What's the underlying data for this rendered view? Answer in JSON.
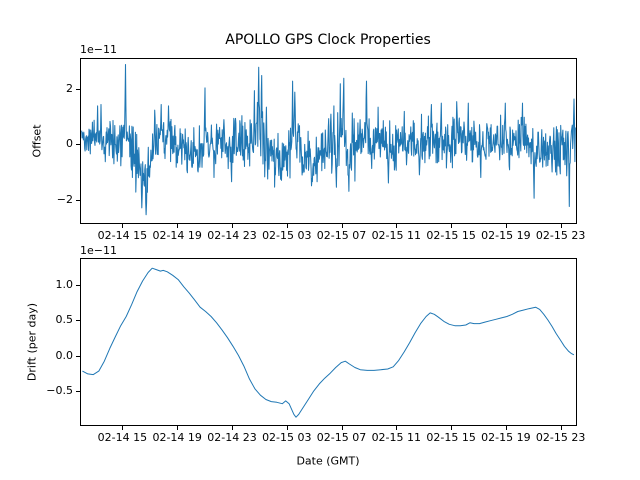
{
  "figure": {
    "title": "APOLLO GPS Clock Properties",
    "background_color": "#ffffff",
    "line_color": "#1f77b4"
  },
  "chart_data": [
    {
      "id": "offset",
      "type": "line",
      "title": "APOLLO GPS Clock Properties",
      "ylabel": "Offset",
      "xlabel": "",
      "scale_label": "1e−11",
      "y_unit_multiplier": "1e-11",
      "line_color": "#1f77b4",
      "grid": false,
      "legend": "none",
      "xlim_hours": [
        11.9,
        48.05
      ],
      "ylim": [
        -2.85,
        3.1
      ],
      "yticks": [
        {
          "value": 2,
          "label": "2"
        },
        {
          "value": 0,
          "label": "0"
        },
        {
          "value": -2,
          "label": "−2"
        }
      ],
      "xticks": [
        {
          "hour": 15,
          "label": "02-14 15"
        },
        {
          "hour": 19,
          "label": "02-14 19"
        },
        {
          "hour": 23,
          "label": "02-14 23"
        },
        {
          "hour": 27,
          "label": "02-15 03"
        },
        {
          "hour": 31,
          "label": "02-15 07"
        },
        {
          "hour": 35,
          "label": "02-15 11"
        },
        {
          "hour": 39,
          "label": "02-15 15"
        },
        {
          "hour": 43,
          "label": "02-15 19"
        },
        {
          "hour": 47,
          "label": "02-15 23"
        }
      ],
      "series_synthesis": {
        "comment_units": "hours since 02-14 00:00 GMT; values in 1e-11",
        "n_points": 1150,
        "seed": 42,
        "start_hour": 11.95,
        "end_hour": 48.0,
        "mean_anchors": [
          [
            12.0,
            0.3
          ],
          [
            13.0,
            0.2
          ],
          [
            14.0,
            0.05
          ],
          [
            15.0,
            0.15
          ],
          [
            15.6,
            -0.1
          ],
          [
            16.1,
            -0.7
          ],
          [
            16.6,
            -1.25
          ],
          [
            17.0,
            -0.55
          ],
          [
            17.5,
            0.1
          ],
          [
            18.0,
            0.3
          ],
          [
            18.6,
            0.0
          ],
          [
            19.2,
            -0.1
          ],
          [
            20.0,
            -0.3
          ],
          [
            20.7,
            -0.25
          ],
          [
            21.3,
            0.1
          ],
          [
            22.0,
            0.0
          ],
          [
            22.7,
            -0.15
          ],
          [
            23.4,
            0.1
          ],
          [
            24.2,
            0.15
          ],
          [
            24.9,
            0.5
          ],
          [
            25.5,
            -0.05
          ],
          [
            26.1,
            -0.5
          ],
          [
            26.7,
            -0.5
          ],
          [
            27.3,
            0.15
          ],
          [
            27.7,
            0.1
          ],
          [
            28.3,
            -0.45
          ],
          [
            28.9,
            -0.55
          ],
          [
            29.6,
            -0.25
          ],
          [
            30.2,
            0.05
          ],
          [
            30.9,
            0.35
          ],
          [
            31.5,
            -0.15
          ],
          [
            32.1,
            0.1
          ],
          [
            32.8,
            0.3
          ],
          [
            33.5,
            0.05
          ],
          [
            34.3,
            -0.2
          ],
          [
            35.1,
            0.0
          ],
          [
            36.0,
            0.1
          ],
          [
            37.0,
            0.05
          ],
          [
            37.9,
            0.2
          ],
          [
            38.6,
            0.0
          ],
          [
            39.4,
            0.25
          ],
          [
            40.1,
            0.15
          ],
          [
            40.8,
            -0.1
          ],
          [
            41.6,
            0.0
          ],
          [
            42.4,
            0.1
          ],
          [
            43.1,
            0.05
          ],
          [
            44.0,
            0.2
          ],
          [
            44.8,
            -0.05
          ],
          [
            45.4,
            -0.3
          ],
          [
            46.1,
            -0.2
          ],
          [
            46.8,
            -0.15
          ],
          [
            47.4,
            -0.1
          ],
          [
            47.95,
            0.4
          ]
        ],
        "std_anchors": [
          [
            12.0,
            0.25
          ],
          [
            13.5,
            0.35
          ],
          [
            15.0,
            0.4
          ],
          [
            16.5,
            0.55
          ],
          [
            18.0,
            0.45
          ],
          [
            20.0,
            0.4
          ],
          [
            22.0,
            0.4
          ],
          [
            23.5,
            0.42
          ],
          [
            24.9,
            0.55
          ],
          [
            26.0,
            0.45
          ],
          [
            27.5,
            0.5
          ],
          [
            28.8,
            0.55
          ],
          [
            30.0,
            0.5
          ],
          [
            31.0,
            0.55
          ],
          [
            32.5,
            0.45
          ],
          [
            34.0,
            0.42
          ],
          [
            35.5,
            0.4
          ],
          [
            37.0,
            0.42
          ],
          [
            39.0,
            0.48
          ],
          [
            41.0,
            0.4
          ],
          [
            43.0,
            0.42
          ],
          [
            44.5,
            0.45
          ],
          [
            45.5,
            0.45
          ],
          [
            47.0,
            0.42
          ],
          [
            47.95,
            0.5
          ]
        ],
        "spikes": [
          [
            13.1,
            1.4
          ],
          [
            13.35,
            1.45
          ],
          [
            15.15,
            2.9
          ],
          [
            16.35,
            -2.3
          ],
          [
            16.65,
            -2.55
          ],
          [
            17.75,
            1.45
          ],
          [
            18.3,
            1.4
          ],
          [
            20.45,
            -1.0
          ],
          [
            20.96,
            2.05
          ],
          [
            21.6,
            -1.2
          ],
          [
            22.35,
            0.9
          ],
          [
            22.9,
            -1.35
          ],
          [
            24.55,
            1.95
          ],
          [
            24.87,
            2.8
          ],
          [
            25.1,
            2.5
          ],
          [
            25.45,
            1.35
          ],
          [
            26.1,
            -1.1
          ],
          [
            26.55,
            -1.3
          ],
          [
            27.35,
            2.3
          ],
          [
            27.52,
            1.9
          ],
          [
            28.2,
            -1.0
          ],
          [
            28.75,
            -1.5
          ],
          [
            29.15,
            -1.35
          ],
          [
            30.15,
            1.1
          ],
          [
            30.55,
            -1.55
          ],
          [
            30.85,
            2.2
          ],
          [
            31.1,
            2.4
          ],
          [
            31.45,
            -1.7
          ],
          [
            32.75,
            2.3
          ],
          [
            33.6,
            1.35
          ],
          [
            34.35,
            -1.4
          ],
          [
            35.5,
            1.2
          ],
          [
            36.6,
            -1.1
          ],
          [
            37.5,
            1.45
          ],
          [
            38.2,
            1.5
          ],
          [
            39.35,
            1.55
          ],
          [
            40.2,
            1.5
          ],
          [
            41.1,
            -1.2
          ],
          [
            42.9,
            1.5
          ],
          [
            44.15,
            1.5
          ],
          [
            45.0,
            -1.95
          ],
          [
            46.3,
            -1.0
          ],
          [
            47.55,
            -2.25
          ],
          [
            47.9,
            1.65
          ]
        ]
      }
    },
    {
      "id": "drift",
      "type": "line",
      "title": "",
      "ylabel": "Drift (per day)",
      "xlabel": "Date (GMT)",
      "scale_label": "1e−11",
      "y_unit_multiplier": "1e-11",
      "line_color": "#1f77b4",
      "grid": false,
      "legend": "none",
      "xlim_hours": [
        11.9,
        48.05
      ],
      "ylim": [
        -0.98,
        1.36
      ],
      "yticks": [
        {
          "value": 1.0,
          "label": "1.0"
        },
        {
          "value": 0.5,
          "label": "0.5"
        },
        {
          "value": 0.0,
          "label": "0.0"
        },
        {
          "value": -0.5,
          "label": "−0.5"
        }
      ],
      "xticks": [
        {
          "hour": 15,
          "label": "02-14 15"
        },
        {
          "hour": 19,
          "label": "02-14 19"
        },
        {
          "hour": 23,
          "label": "02-14 23"
        },
        {
          "hour": 27,
          "label": "02-15 03"
        },
        {
          "hour": 31,
          "label": "02-15 07"
        },
        {
          "hour": 35,
          "label": "02-15 11"
        },
        {
          "hour": 39,
          "label": "02-15 15"
        },
        {
          "hour": 43,
          "label": "02-15 19"
        },
        {
          "hour": 47,
          "label": "02-15 23"
        }
      ],
      "points_hour_value": [
        [
          12.0,
          -0.22
        ],
        [
          12.4,
          -0.26
        ],
        [
          12.8,
          -0.27
        ],
        [
          13.2,
          -0.22
        ],
        [
          13.6,
          -0.08
        ],
        [
          14.0,
          0.1
        ],
        [
          14.4,
          0.26
        ],
        [
          14.8,
          0.42
        ],
        [
          15.2,
          0.55
        ],
        [
          15.6,
          0.72
        ],
        [
          16.0,
          0.9
        ],
        [
          16.4,
          1.05
        ],
        [
          16.8,
          1.17
        ],
        [
          17.1,
          1.23
        ],
        [
          17.4,
          1.21
        ],
        [
          17.7,
          1.19
        ],
        [
          17.9,
          1.2
        ],
        [
          18.2,
          1.18
        ],
        [
          18.6,
          1.13
        ],
        [
          19.0,
          1.07
        ],
        [
          19.4,
          0.97
        ],
        [
          19.8,
          0.88
        ],
        [
          20.2,
          0.78
        ],
        [
          20.6,
          0.68
        ],
        [
          21.0,
          0.62
        ],
        [
          21.4,
          0.55
        ],
        [
          21.8,
          0.46
        ],
        [
          22.2,
          0.36
        ],
        [
          22.6,
          0.25
        ],
        [
          23.0,
          0.13
        ],
        [
          23.4,
          0.0
        ],
        [
          23.8,
          -0.15
        ],
        [
          24.2,
          -0.33
        ],
        [
          24.6,
          -0.47
        ],
        [
          25.0,
          -0.56
        ],
        [
          25.4,
          -0.62
        ],
        [
          25.8,
          -0.65
        ],
        [
          26.2,
          -0.66
        ],
        [
          26.6,
          -0.68
        ],
        [
          26.85,
          -0.64
        ],
        [
          27.1,
          -0.68
        ],
        [
          27.45,
          -0.83
        ],
        [
          27.6,
          -0.87
        ],
        [
          27.8,
          -0.83
        ],
        [
          28.1,
          -0.74
        ],
        [
          28.5,
          -0.62
        ],
        [
          28.9,
          -0.5
        ],
        [
          29.3,
          -0.4
        ],
        [
          29.7,
          -0.32
        ],
        [
          30.1,
          -0.25
        ],
        [
          30.5,
          -0.17
        ],
        [
          30.9,
          -0.1
        ],
        [
          31.2,
          -0.08
        ],
        [
          31.5,
          -0.12
        ],
        [
          31.9,
          -0.17
        ],
        [
          32.3,
          -0.2
        ],
        [
          32.8,
          -0.21
        ],
        [
          33.3,
          -0.21
        ],
        [
          33.8,
          -0.2
        ],
        [
          34.3,
          -0.19
        ],
        [
          34.7,
          -0.16
        ],
        [
          35.1,
          -0.07
        ],
        [
          35.5,
          0.05
        ],
        [
          35.9,
          0.18
        ],
        [
          36.3,
          0.32
        ],
        [
          36.7,
          0.45
        ],
        [
          37.1,
          0.55
        ],
        [
          37.4,
          0.6
        ],
        [
          37.7,
          0.58
        ],
        [
          38.0,
          0.54
        ],
        [
          38.4,
          0.48
        ],
        [
          38.8,
          0.44
        ],
        [
          39.2,
          0.42
        ],
        [
          39.6,
          0.42
        ],
        [
          40.0,
          0.43
        ],
        [
          40.3,
          0.46
        ],
        [
          40.6,
          0.45
        ],
        [
          41.0,
          0.45
        ],
        [
          41.4,
          0.47
        ],
        [
          41.8,
          0.49
        ],
        [
          42.2,
          0.51
        ],
        [
          42.6,
          0.53
        ],
        [
          43.0,
          0.55
        ],
        [
          43.4,
          0.58
        ],
        [
          43.8,
          0.62
        ],
        [
          44.2,
          0.64
        ],
        [
          44.6,
          0.66
        ],
        [
          45.1,
          0.68
        ],
        [
          45.4,
          0.65
        ],
        [
          45.7,
          0.58
        ],
        [
          46.0,
          0.5
        ],
        [
          46.3,
          0.41
        ],
        [
          46.6,
          0.31
        ],
        [
          46.9,
          0.22
        ],
        [
          47.2,
          0.13
        ],
        [
          47.5,
          0.06
        ],
        [
          47.7,
          0.03
        ],
        [
          47.9,
          0.01
        ]
      ]
    }
  ]
}
